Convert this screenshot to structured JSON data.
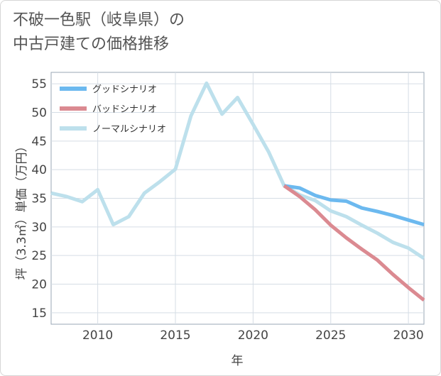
{
  "title": {
    "line1": "不破一色駅（岐阜県）の",
    "line2": "中古戸建ての価格推移"
  },
  "chart_data": {
    "type": "line",
    "title": "不破一色駅（岐阜県）の中古戸建ての価格推移",
    "xlabel": "年",
    "ylabel": "坪（3.3㎡）単価（万円）",
    "xlim": [
      2007,
      2031
    ],
    "ylim": [
      13,
      57
    ],
    "xticks": [
      2010,
      2015,
      2020,
      2025,
      2030
    ],
    "yticks": [
      15,
      20,
      25,
      30,
      35,
      40,
      45,
      50,
      55
    ],
    "grid": true,
    "legend_position": "top-left",
    "series": [
      {
        "name": "グッドシナリオ",
        "color": "#6cb9ef",
        "x": [
          2022,
          2023,
          2024,
          2025,
          2026,
          2027,
          2028,
          2029,
          2030,
          2031
        ],
        "y": [
          37.2,
          36.8,
          35.5,
          34.7,
          34.5,
          33.3,
          32.7,
          32.0,
          31.2,
          30.4
        ]
      },
      {
        "name": "バッドシナリオ",
        "color": "#db8a91",
        "x": [
          2022,
          2023,
          2024,
          2025,
          2026,
          2027,
          2028,
          2029,
          2030,
          2031
        ],
        "y": [
          37.2,
          35.3,
          33.0,
          30.3,
          28.1,
          26.1,
          24.2,
          21.7,
          19.4,
          17.2
        ]
      },
      {
        "name": "ノーマルシナリオ",
        "color": "#bde0ec",
        "x": [
          2007,
          2008,
          2009,
          2010,
          2011,
          2012,
          2013,
          2014,
          2015,
          2016,
          2017,
          2018,
          2019,
          2020,
          2021,
          2022,
          2023,
          2024,
          2025,
          2026,
          2027,
          2028,
          2029,
          2030,
          2031
        ],
        "y": [
          35.9,
          35.3,
          34.4,
          36.5,
          30.4,
          31.8,
          35.9,
          37.9,
          40.1,
          49.4,
          55.1,
          49.7,
          52.6,
          47.9,
          43.1,
          37.2,
          35.6,
          34.6,
          32.8,
          31.8,
          30.3,
          28.9,
          27.3,
          26.3,
          24.5
        ]
      }
    ]
  }
}
